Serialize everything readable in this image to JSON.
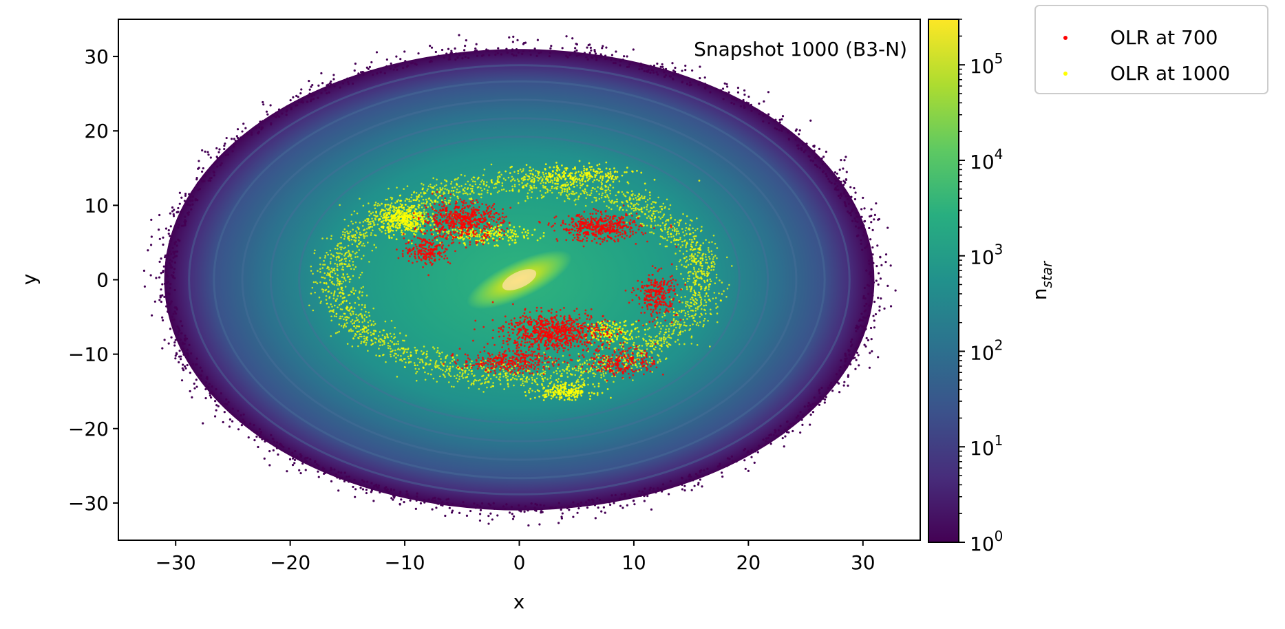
{
  "chart_data": {
    "type": "scatter",
    "title": "",
    "annotation": "Snapshot 1000 (B3-N)",
    "xlabel": "x",
    "ylabel": "y",
    "xlim": [
      -35,
      35
    ],
    "ylim": [
      -35,
      35
    ],
    "xticks": [
      -30,
      -20,
      -10,
      0,
      10,
      20,
      30
    ],
    "xtick_labels": [
      "−30",
      "−20",
      "−10",
      "0",
      "10",
      "20",
      "30"
    ],
    "yticks": [
      -30,
      -20,
      -10,
      0,
      10,
      20,
      30
    ],
    "ytick_labels": [
      "−30",
      "−20",
      "−10",
      "0",
      "10",
      "20",
      "30"
    ],
    "grid": false,
    "background": {
      "type": "density",
      "shape": "disk",
      "x_range": [
        -31,
        31
      ],
      "y_range": [
        -31,
        31
      ],
      "bar_angle_deg": 25,
      "colormap": "viridis"
    },
    "colorbar": {
      "label": "n",
      "label_sub": "star",
      "scale": "log",
      "min": 1,
      "max": 300000,
      "ticks": [
        {
          "value": 1,
          "base": "10",
          "exp": "0"
        },
        {
          "value": 10,
          "base": "10",
          "exp": "1"
        },
        {
          "value": 100,
          "base": "10",
          "exp": "2"
        },
        {
          "value": 1000,
          "base": "10",
          "exp": "3"
        },
        {
          "value": 10000,
          "base": "10",
          "exp": "4"
        },
        {
          "value": 100000,
          "base": "10",
          "exp": "5"
        }
      ]
    },
    "series": [
      {
        "name": "OLR at 700",
        "color": "#ff0000",
        "clusters": [
          {
            "x": -5,
            "y": 8,
            "rx": 3.5,
            "ry": 2.5,
            "n": 550
          },
          {
            "x": -8,
            "y": 4,
            "rx": 2,
            "ry": 2,
            "n": 200
          },
          {
            "x": 7,
            "y": 7,
            "rx": 3.5,
            "ry": 1.8,
            "n": 450
          },
          {
            "x": 3,
            "y": -7,
            "rx": 4.5,
            "ry": 2.5,
            "n": 750
          },
          {
            "x": 12,
            "y": -2,
            "rx": 1.8,
            "ry": 3,
            "n": 260
          },
          {
            "x": -1,
            "y": -11,
            "rx": 4,
            "ry": 1.5,
            "n": 300
          },
          {
            "x": 9,
            "y": -11,
            "rx": 3,
            "ry": 2,
            "n": 220
          }
        ]
      },
      {
        "name": "OLR at 1000",
        "color": "#ffff00",
        "ring": {
          "rx": 16,
          "ry": 13,
          "width": 1.6,
          "n": 2600
        },
        "clusters": [
          {
            "x": -10,
            "y": 8,
            "rx": 2,
            "ry": 2,
            "n": 380
          },
          {
            "x": 4,
            "y": -15,
            "rx": 2.5,
            "ry": 1,
            "n": 220
          },
          {
            "x": 5,
            "y": 14,
            "rx": 5,
            "ry": 1.5,
            "n": 250
          },
          {
            "x": -3,
            "y": 6,
            "rx": 4,
            "ry": 1.2,
            "n": 200
          },
          {
            "x": 8,
            "y": -7,
            "rx": 2.5,
            "ry": 1.5,
            "n": 160
          }
        ]
      }
    ],
    "legend": {
      "placement": "outside upper right"
    }
  }
}
